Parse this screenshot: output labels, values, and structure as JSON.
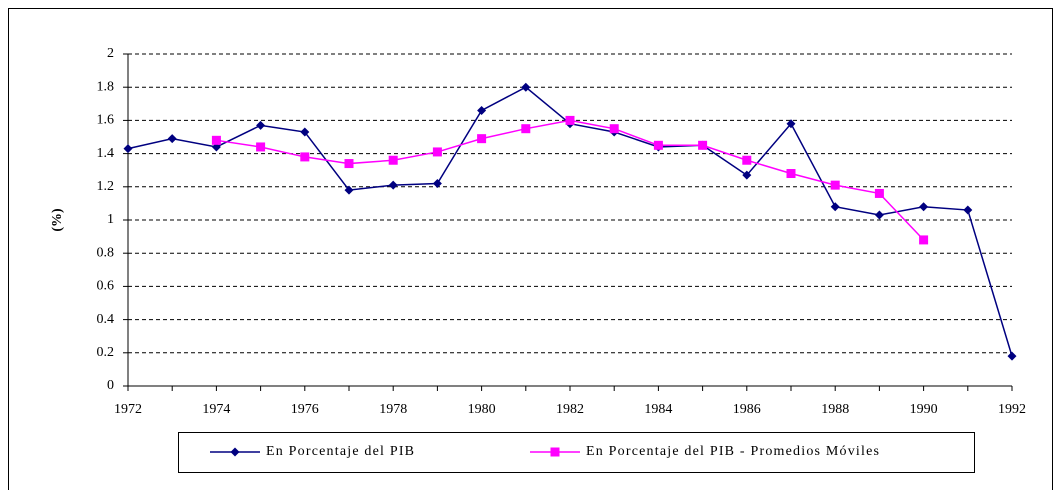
{
  "chart_data": {
    "type": "line",
    "y_label": "(%)",
    "x": [
      1972,
      1973,
      1974,
      1975,
      1976,
      1977,
      1978,
      1979,
      1980,
      1981,
      1982,
      1983,
      1984,
      1985,
      1986,
      1987,
      1988,
      1989,
      1990,
      1991,
      1992
    ],
    "series": [
      {
        "name": "En Porcentaje del PIB",
        "color": "#000080",
        "marker": "diamond",
        "values": [
          1.43,
          1.49,
          1.44,
          1.57,
          1.53,
          1.18,
          1.21,
          1.22,
          1.66,
          1.8,
          1.58,
          1.53,
          1.44,
          1.45,
          1.27,
          1.58,
          1.08,
          1.03,
          1.08,
          1.06,
          0.18
        ]
      },
      {
        "name": "En Porcentaje del PIB - Promedios Móviles",
        "color": "#ff00ff",
        "marker": "square",
        "values": [
          null,
          null,
          1.48,
          1.44,
          1.38,
          1.34,
          1.36,
          1.41,
          1.49,
          1.55,
          1.6,
          1.55,
          1.45,
          1.45,
          1.36,
          1.28,
          1.21,
          1.16,
          0.88,
          null,
          null
        ]
      }
    ],
    "xlim": [
      1972,
      1992
    ],
    "xticks": [
      1972,
      1974,
      1976,
      1978,
      1980,
      1982,
      1984,
      1986,
      1988,
      1990,
      1992
    ],
    "ylim": [
      0,
      2
    ],
    "yticks": [
      0,
      0.2,
      0.4,
      0.6,
      0.8,
      1,
      1.2,
      1.4,
      1.6,
      1.8,
      2
    ],
    "grid": true,
    "legend": "bottom"
  }
}
